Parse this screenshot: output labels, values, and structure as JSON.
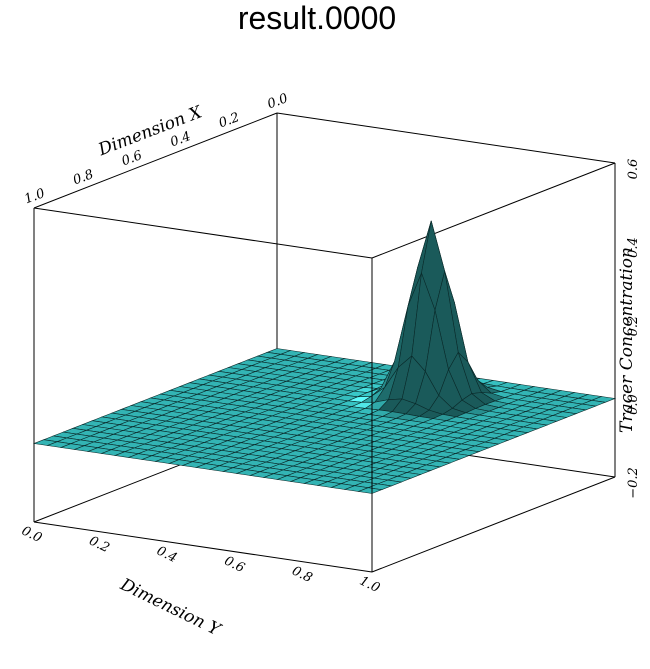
{
  "title": "result.0000",
  "chart_data": {
    "type": "surface",
    "title": "result.0000",
    "xlabel": "Dimension X",
    "ylabel": "Dimension Y",
    "zlabel": "Tracer Concentration",
    "xlim": [
      0,
      1
    ],
    "ylim": [
      0,
      1
    ],
    "zlim": [
      -0.2,
      0.6
    ],
    "x_ticks": [
      "0.0",
      "0.2",
      "0.4",
      "0.6",
      "0.8",
      "1.0"
    ],
    "y_ticks": [
      "0.0",
      "0.2",
      "0.4",
      "0.6",
      "0.8",
      "1.0"
    ],
    "z_ticks": [
      "−0.2",
      "0.0",
      "0.2",
      "0.4",
      "0.6"
    ],
    "surface": {
      "function": "gaussian",
      "baseline": 0.0,
      "peak_value": 0.45,
      "peak_x": 0.2,
      "peak_y": 0.6,
      "sigma": 0.05,
      "grid_lines": 25
    },
    "colors": {
      "surface_fill": "#39c9c9",
      "surface_highlight": "#aefcfc",
      "surface_shadow": "#1f8f8f",
      "grid_lines": "#0a2a2a",
      "box_lines": "#000000"
    }
  }
}
